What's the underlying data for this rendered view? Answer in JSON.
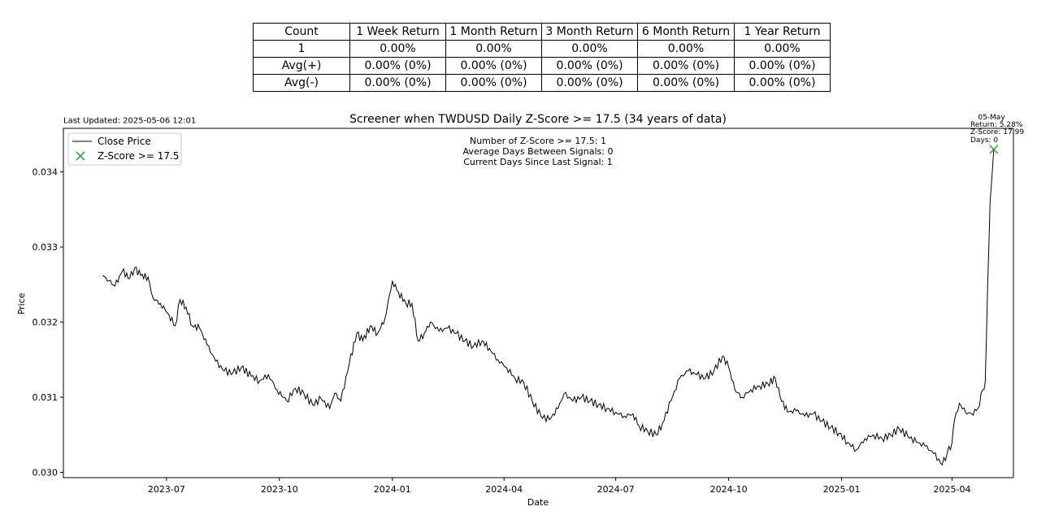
{
  "table": {
    "headers": [
      "Count",
      "1 Week Return",
      "1 Month Return",
      "3 Month Return",
      "6 Month Return",
      "1 Year Return"
    ],
    "rows": [
      [
        "1",
        "0.00%",
        "0.00%",
        "0.00%",
        "0.00%",
        "0.00%"
      ],
      [
        "Avg(+)",
        "0.00% (0%)",
        "0.00% (0%)",
        "0.00% (0%)",
        "0.00% (0%)",
        "0.00% (0%)"
      ],
      [
        "Avg(-)",
        "0.00% (0%)",
        "0.00% (0%)",
        "0.00% (0%)",
        "0.00% (0%)",
        "0.00% (0%)"
      ]
    ]
  },
  "last_updated": "Last Updated: 2025-05-06 12:01",
  "stats_text": [
    "Number of Z-Score >= 17.5: 1",
    "Average Days Between Signals: 0",
    "Current Days Since Last Signal: 1"
  ],
  "annotation": [
    "05-May",
    "Return: 5.28%",
    "Z-Score: 17.99",
    "Days: 0"
  ],
  "chart_data": {
    "type": "line",
    "title": "Screener when TWDUSD Daily Z-Score >= 17.5 (34 years of data)",
    "xlabel": "Date",
    "ylabel": "Price",
    "xlim": [
      "2023-04-08",
      "2025-05-21"
    ],
    "ylim": [
      0.02993,
      0.03458
    ],
    "x_ticks": [
      "2023-07-01",
      "2023-10-01",
      "2024-01-01",
      "2024-04-01",
      "2024-07-01",
      "2024-10-01",
      "2025-01-01",
      "2025-04-01"
    ],
    "x_tick_labels": [
      "2023-07",
      "2023-10",
      "2024-01",
      "2024-04",
      "2024-07",
      "2024-10",
      "2025-01",
      "2025-04"
    ],
    "y_ticks": [
      0.03,
      0.031,
      0.032,
      0.033,
      0.034
    ],
    "y_tick_labels": [
      "0.030",
      "0.031",
      "0.032",
      "0.033",
      "0.034"
    ],
    "grid": false,
    "legend": {
      "placement": "upper-left",
      "entries": [
        "Close Price",
        "Z-Score >= 17.5"
      ]
    },
    "series": [
      {
        "name": "Close Price",
        "color": "#000000",
        "points": [
          [
            "2023-05-10",
            0.03262
          ],
          [
            "2023-05-15",
            0.03255
          ],
          [
            "2023-05-20",
            0.03248
          ],
          [
            "2023-05-26",
            0.03268
          ],
          [
            "2023-06-01",
            0.03258
          ],
          [
            "2023-06-05",
            0.03272
          ],
          [
            "2023-06-10",
            0.03262
          ],
          [
            "2023-06-16",
            0.0326
          ],
          [
            "2023-06-20",
            0.03232
          ],
          [
            "2023-06-26",
            0.03225
          ],
          [
            "2023-07-03",
            0.0321
          ],
          [
            "2023-07-08",
            0.03195
          ],
          [
            "2023-07-12",
            0.0323
          ],
          [
            "2023-07-17",
            0.0322
          ],
          [
            "2023-07-22",
            0.03195
          ],
          [
            "2023-07-28",
            0.03192
          ],
          [
            "2023-08-03",
            0.0317
          ],
          [
            "2023-08-10",
            0.03148
          ],
          [
            "2023-08-17",
            0.03135
          ],
          [
            "2023-08-24",
            0.03132
          ],
          [
            "2023-08-31",
            0.0314
          ],
          [
            "2023-09-08",
            0.03128
          ],
          [
            "2023-09-15",
            0.03122
          ],
          [
            "2023-09-22",
            0.0313
          ],
          [
            "2023-09-29",
            0.0311
          ],
          [
            "2023-10-07",
            0.03095
          ],
          [
            "2023-10-14",
            0.03112
          ],
          [
            "2023-10-21",
            0.03105
          ],
          [
            "2023-10-28",
            0.0309
          ],
          [
            "2023-11-04",
            0.03098
          ],
          [
            "2023-11-11",
            0.03085
          ],
          [
            "2023-11-15",
            0.03105
          ],
          [
            "2023-11-20",
            0.03095
          ],
          [
            "2023-11-27",
            0.03145
          ],
          [
            "2023-12-03",
            0.03185
          ],
          [
            "2023-12-08",
            0.03175
          ],
          [
            "2023-12-14",
            0.03195
          ],
          [
            "2023-12-20",
            0.03185
          ],
          [
            "2023-12-26",
            0.03205
          ],
          [
            "2024-01-01",
            0.03255
          ],
          [
            "2024-01-06",
            0.0324
          ],
          [
            "2024-01-12",
            0.03225
          ],
          [
            "2024-01-17",
            0.03225
          ],
          [
            "2024-01-22",
            0.03175
          ],
          [
            "2024-01-27",
            0.03185
          ],
          [
            "2024-02-01",
            0.032
          ],
          [
            "2024-02-08",
            0.03188
          ],
          [
            "2024-02-15",
            0.03192
          ],
          [
            "2024-02-22",
            0.03185
          ],
          [
            "2024-02-29",
            0.03175
          ],
          [
            "2024-03-07",
            0.03168
          ],
          [
            "2024-03-14",
            0.03175
          ],
          [
            "2024-03-20",
            0.03165
          ],
          [
            "2024-03-27",
            0.0315
          ],
          [
            "2024-04-03",
            0.0314
          ],
          [
            "2024-04-10",
            0.03125
          ],
          [
            "2024-04-17",
            0.0312
          ],
          [
            "2024-04-24",
            0.03095
          ],
          [
            "2024-05-01",
            0.03075
          ],
          [
            "2024-05-08",
            0.0307
          ],
          [
            "2024-05-15",
            0.03085
          ],
          [
            "2024-05-20",
            0.03105
          ],
          [
            "2024-05-27",
            0.03095
          ],
          [
            "2024-06-03",
            0.031
          ],
          [
            "2024-06-10",
            0.03095
          ],
          [
            "2024-06-17",
            0.0309
          ],
          [
            "2024-06-24",
            0.03085
          ],
          [
            "2024-07-01",
            0.0308
          ],
          [
            "2024-07-08",
            0.03075
          ],
          [
            "2024-07-15",
            0.03078
          ],
          [
            "2024-07-20",
            0.03062
          ],
          [
            "2024-07-27",
            0.03055
          ],
          [
            "2024-08-03",
            0.0305
          ],
          [
            "2024-08-08",
            0.03065
          ],
          [
            "2024-08-15",
            0.03095
          ],
          [
            "2024-08-22",
            0.03125
          ],
          [
            "2024-08-29",
            0.03135
          ],
          [
            "2024-09-05",
            0.0313
          ],
          [
            "2024-09-12",
            0.03125
          ],
          [
            "2024-09-19",
            0.03135
          ],
          [
            "2024-09-26",
            0.03155
          ],
          [
            "2024-10-01",
            0.0314
          ],
          [
            "2024-10-06",
            0.0311
          ],
          [
            "2024-10-12",
            0.031
          ],
          [
            "2024-10-19",
            0.0311
          ],
          [
            "2024-10-26",
            0.03115
          ],
          [
            "2024-11-02",
            0.03118
          ],
          [
            "2024-11-08",
            0.03125
          ],
          [
            "2024-11-12",
            0.031
          ],
          [
            "2024-11-18",
            0.0308
          ],
          [
            "2024-11-25",
            0.03082
          ],
          [
            "2024-12-02",
            0.03075
          ],
          [
            "2024-12-09",
            0.03078
          ],
          [
            "2024-12-16",
            0.03068
          ],
          [
            "2024-12-23",
            0.0306
          ],
          [
            "2024-12-30",
            0.03052
          ],
          [
            "2025-01-06",
            0.0304
          ],
          [
            "2025-01-13",
            0.0303
          ],
          [
            "2025-01-20",
            0.03045
          ],
          [
            "2025-01-27",
            0.0305
          ],
          [
            "2025-02-03",
            0.03045
          ],
          [
            "2025-02-10",
            0.0305
          ],
          [
            "2025-02-17",
            0.03058
          ],
          [
            "2025-02-24",
            0.03048
          ],
          [
            "2025-03-03",
            0.0304
          ],
          [
            "2025-03-10",
            0.03035
          ],
          [
            "2025-03-17",
            0.03025
          ],
          [
            "2025-03-24",
            0.0301
          ],
          [
            "2025-03-28",
            0.03025
          ],
          [
            "2025-04-01",
            0.0304
          ],
          [
            "2025-04-03",
            0.0307
          ],
          [
            "2025-04-07",
            0.03092
          ],
          [
            "2025-04-12",
            0.0308
          ],
          [
            "2025-04-17",
            0.03078
          ],
          [
            "2025-04-22",
            0.03085
          ],
          [
            "2025-04-26",
            0.0311
          ],
          [
            "2025-04-28",
            0.0312
          ],
          [
            "2025-04-30",
            0.0325
          ],
          [
            "2025-05-02",
            0.0336
          ],
          [
            "2025-05-05",
            0.0343
          ]
        ]
      }
    ],
    "signals": [
      {
        "x": "2025-05-05",
        "y": 0.0343,
        "color": "#4c9a4c",
        "marker": "x"
      }
    ]
  }
}
